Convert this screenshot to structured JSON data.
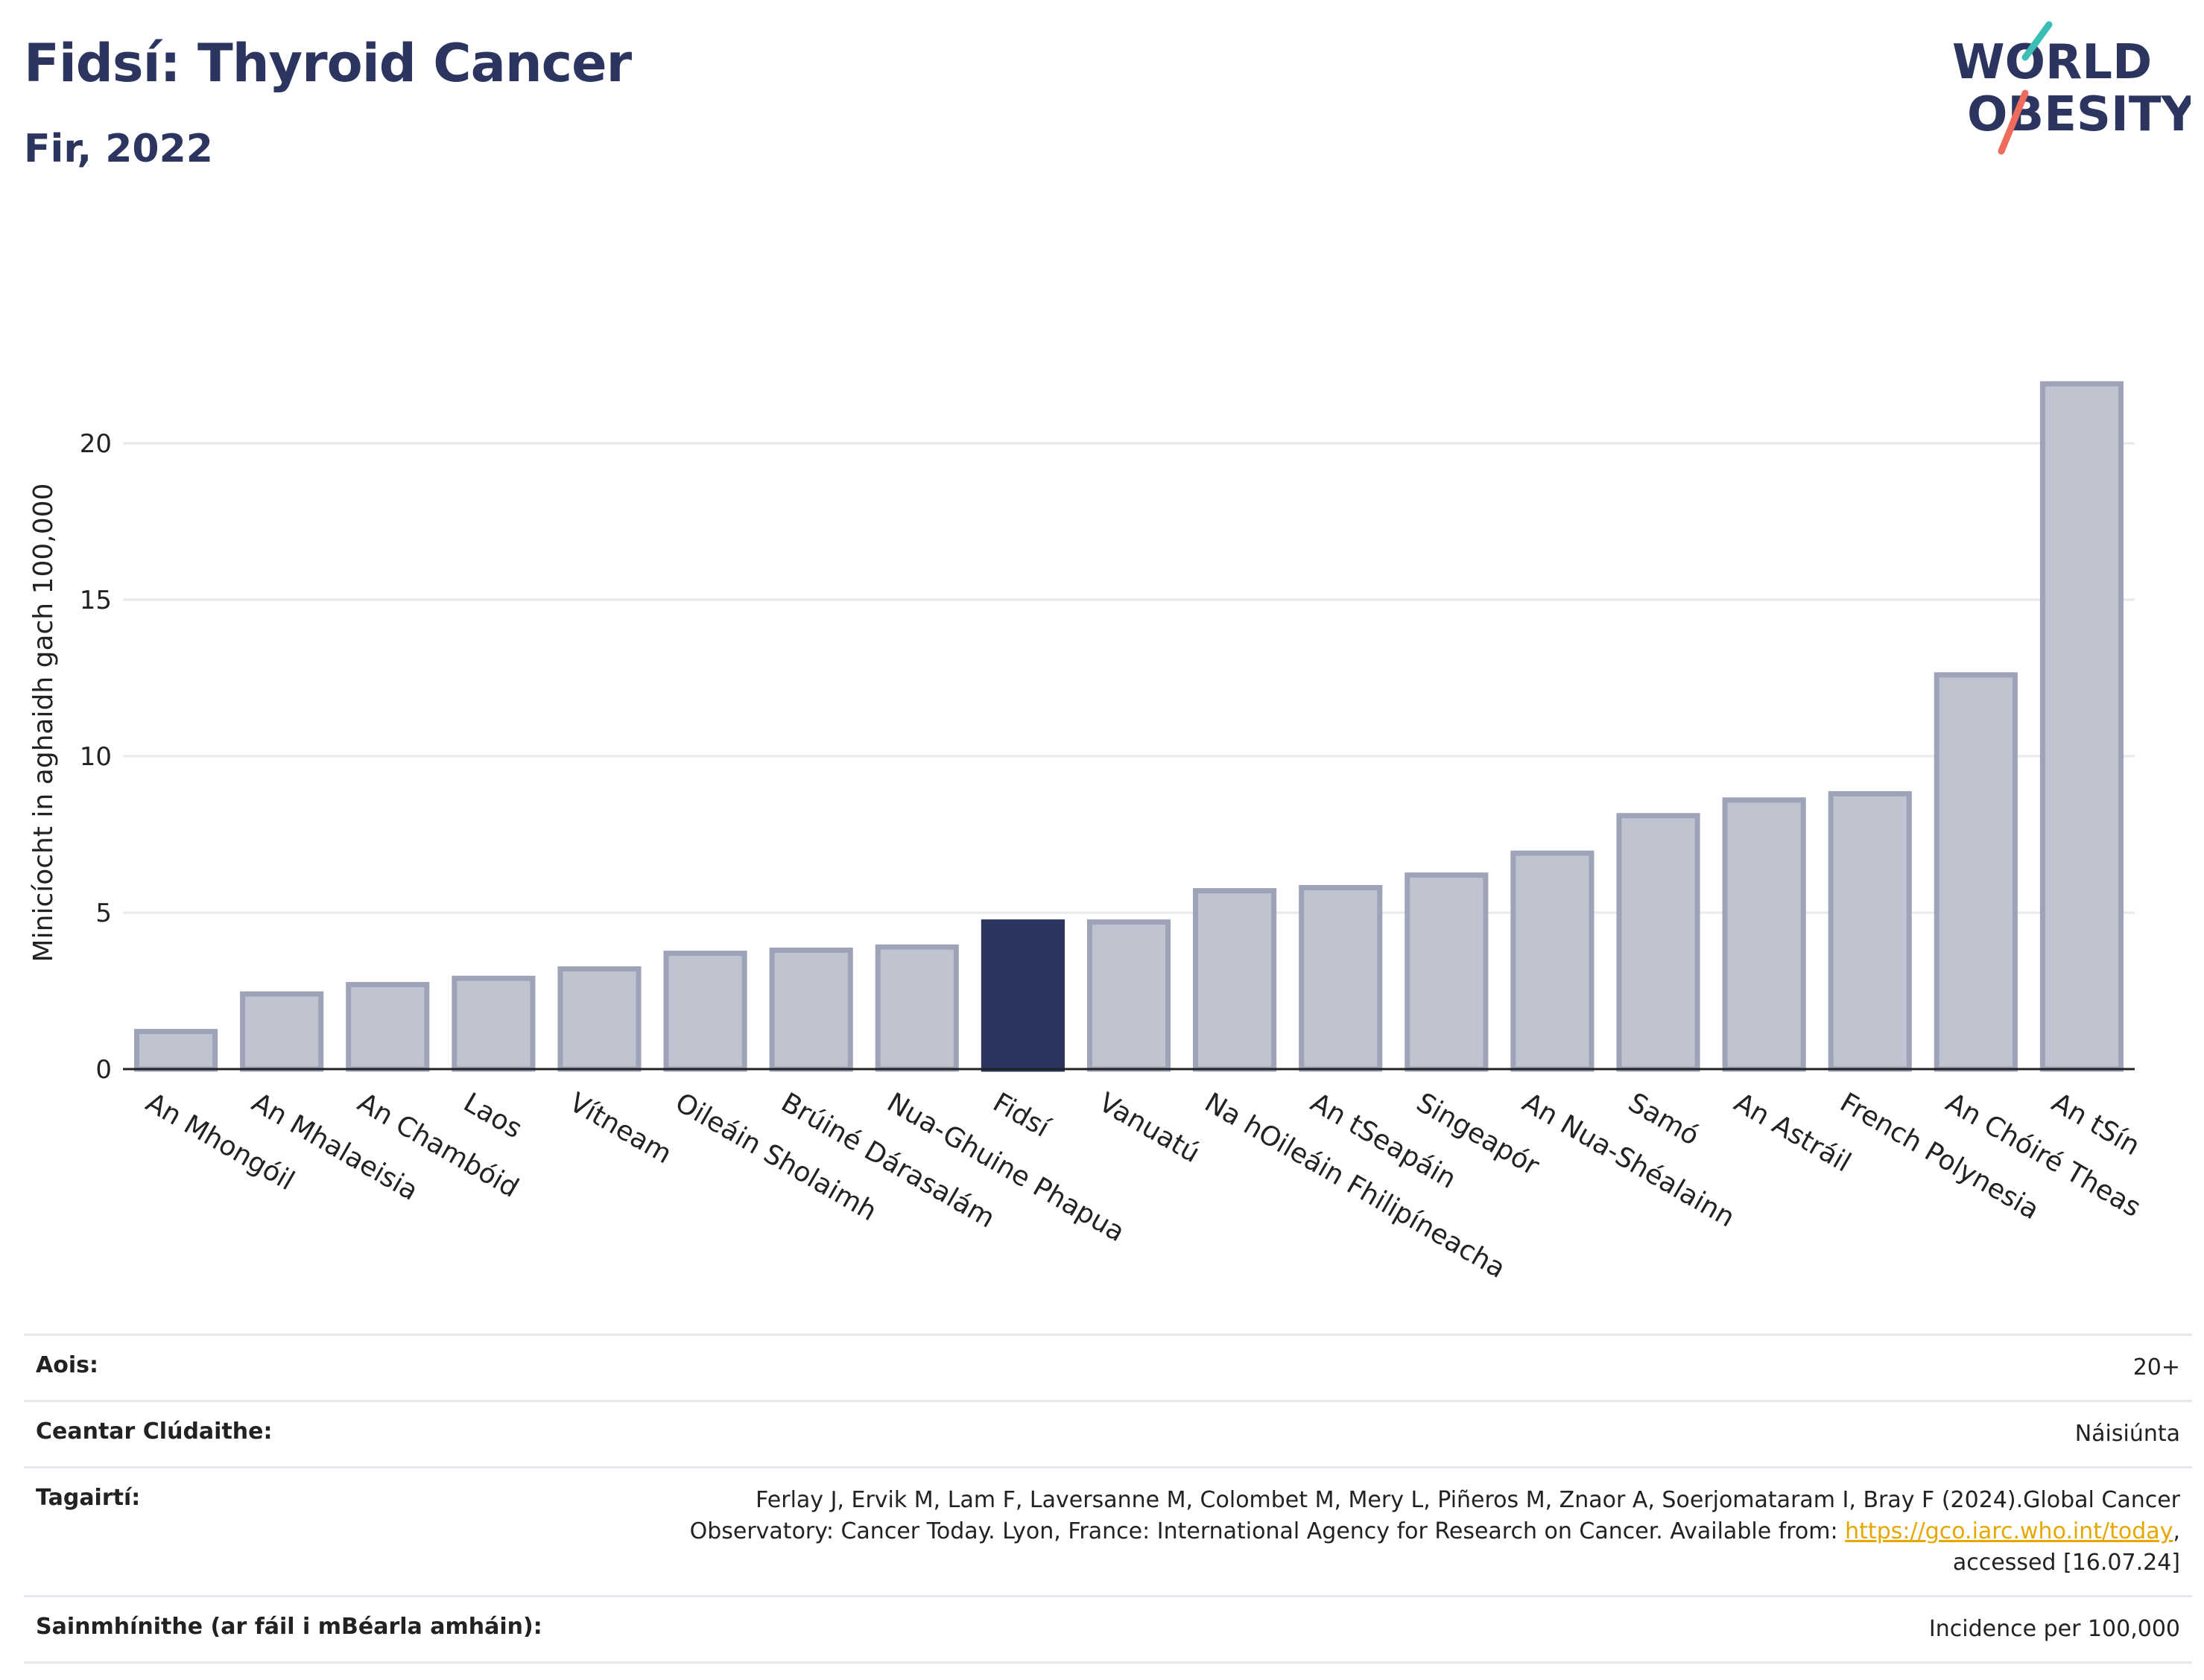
{
  "header": {
    "title": "Fidsí: Thyroid Cancer",
    "subtitle": "Fir, 2022",
    "logo_line1": "WORLD",
    "logo_line2": "OBESITY"
  },
  "colors": {
    "highlight_bar": "#2b3560",
    "other_bar_fill": "#c0c3d0",
    "other_bar_stroke": "#9ea3b8",
    "title": "#2b3560",
    "logo_teal": "#3bbfb4",
    "logo_coral": "#ef6b5b"
  },
  "chart_data": {
    "type": "bar",
    "ylabel": "Minicíocht in aghaidh gach 100,000",
    "ylim": [
      0,
      22.5
    ],
    "yticks": [
      0,
      5,
      10,
      15,
      20
    ],
    "grid": true,
    "highlight": "Fidsí",
    "categories": [
      "An Mhongóil",
      "An Mhalaeisia",
      "An Chambóid",
      "Laos",
      "Vítneam",
      "Oileáin Sholaimh",
      "Brúiné Dárasalám",
      "Nua-Ghuine Phapua",
      "Fidsí",
      "Vanuatú",
      "Na hOileáin Fhilipíneacha",
      "An tSeapáin",
      "Singeapór",
      "An Nua-Shéalainn",
      "Samó",
      "An Astráil",
      "French Polynesia",
      "An Chóiré Theas",
      "An tSín"
    ],
    "values": [
      1.2,
      2.4,
      2.7,
      2.9,
      3.2,
      3.7,
      3.8,
      3.9,
      4.7,
      4.7,
      5.7,
      5.8,
      6.2,
      6.9,
      8.1,
      8.6,
      8.8,
      12.6,
      21.9
    ]
  },
  "meta": {
    "age_label": "Aois:",
    "age_value": "20+",
    "coverage_label": "Ceantar Clúdaithe:",
    "coverage_value": "Náisiúnta",
    "ref_label": "Tagairtí:",
    "ref_text_1": "Ferlay J, Ervik M, Lam F, Laversanne M, Colombet M, Mery L, Piñeros M, Znaor A, Soerjomataram I, Bray F (2024).Global Cancer Observatory: Cancer Today. Lyon, France: International Agency for Research on Cancer. Available from: ",
    "ref_link": "https://gco.iarc.who.int/today",
    "ref_text_2": ", accessed [16.07.24]",
    "def_label": "Sainmhínithe (ar fáil i mBéarla amháin):",
    "def_value": "Incidence per 100,000"
  }
}
